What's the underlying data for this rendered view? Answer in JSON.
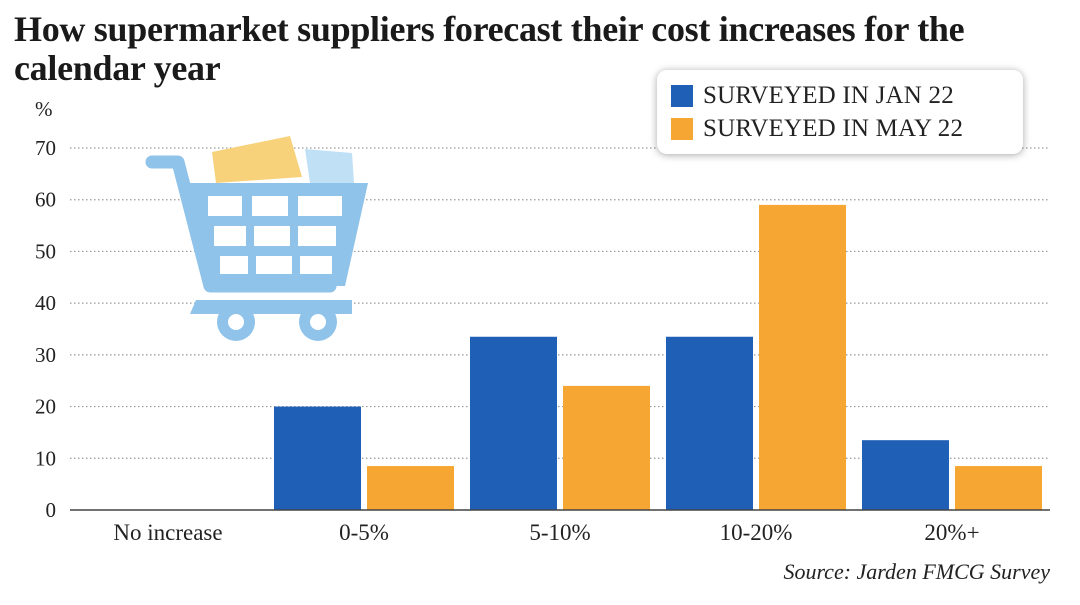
{
  "chart_data": {
    "type": "bar",
    "title": "How supermarket suppliers forecast their cost increases for the calendar year",
    "ylabel": "%",
    "ylim": [
      0,
      70
    ],
    "yticks": [
      0,
      10,
      20,
      30,
      40,
      50,
      60,
      70
    ],
    "categories": [
      "No increase",
      "0-5%",
      "5-10%",
      "10-20%",
      "20%+"
    ],
    "series": [
      {
        "name": "SURVEYED IN JAN 22",
        "color": "#1f5fb5",
        "values": [
          0,
          20,
          33.5,
          33.5,
          13.5
        ]
      },
      {
        "name": "SURVEYED IN MAY 22",
        "color": "#f5a633",
        "values": [
          0,
          8.5,
          24,
          59,
          8.5
        ]
      }
    ],
    "grid": true,
    "legend_position": "top-right",
    "source": "Source: Jarden FMCG Survey"
  },
  "illustration": {
    "icon": "shopping-cart-icon",
    "cart_color": "#8fc3ea",
    "box_colors": [
      "#f7d27a",
      "#bfe0f5"
    ]
  }
}
